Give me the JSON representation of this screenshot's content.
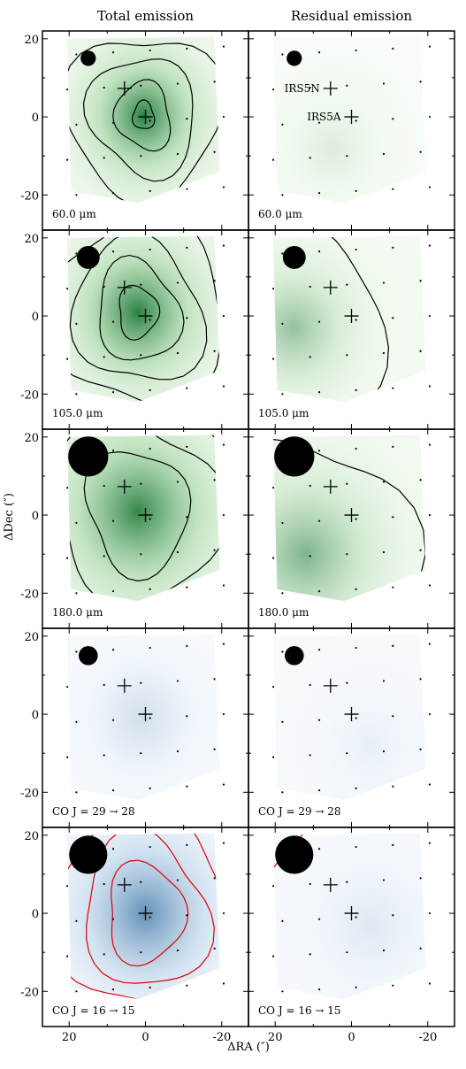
{
  "columns": [
    "Total emission",
    "Residual emission"
  ],
  "axes": {
    "ylabel": "ΔDec (″)",
    "xlabel": "ΔRA (″)",
    "xticks": [
      20,
      0,
      -20
    ],
    "yticks": [
      20,
      0,
      -20
    ],
    "xlim": [
      27,
      -27
    ],
    "ylim": [
      -29,
      22
    ]
  },
  "sources": [
    {
      "name": "IRS5N",
      "ra": 5.5,
      "dec": 7.3
    },
    {
      "name": "IRS5A",
      "ra": 0,
      "dec": 0
    }
  ],
  "chart_data": [
    {
      "type": "heatmap",
      "row": 0,
      "col": 0,
      "label": "60.0 μm",
      "colormap": "green",
      "beam_diameter_arcsec": 4,
      "peak": [
        0.5,
        0.3
      ],
      "peak_intensity": 0.95,
      "contour_levels": [
        0.22,
        0.45,
        0.7,
        0.88
      ],
      "contour_color": "#000000"
    },
    {
      "type": "heatmap",
      "row": 0,
      "col": 1,
      "label": "60.0 μm",
      "colormap": "green",
      "beam_diameter_arcsec": 4,
      "peak": [
        5,
        -8
      ],
      "peak_intensity": 0.12,
      "contour_levels": [],
      "contour_color": "#000000"
    },
    {
      "type": "heatmap",
      "row": 1,
      "col": 0,
      "label": "105.0 μm",
      "colormap": "green",
      "beam_diameter_arcsec": 6,
      "peak": [
        2,
        1
      ],
      "peak_intensity": 0.95,
      "contour_levels": [
        0.2,
        0.4,
        0.6,
        0.8
      ],
      "contour_color": "#000000"
    },
    {
      "type": "heatmap",
      "row": 1,
      "col": 1,
      "label": "105.0 μm",
      "colormap": "green",
      "beam_diameter_arcsec": 6,
      "peak": [
        15,
        -3
      ],
      "peak_intensity": 0.45,
      "contour_levels": [
        0.18
      ],
      "contour_color": "#000000"
    },
    {
      "type": "heatmap",
      "row": 2,
      "col": 0,
      "label": "180.0 μm",
      "colormap": "green",
      "beam_diameter_arcsec": 10.5,
      "peak": [
        2,
        1
      ],
      "peak_intensity": 0.9,
      "contour_levels": [
        0.15,
        0.38,
        0.6
      ],
      "contour_color": "#000000"
    },
    {
      "type": "heatmap",
      "row": 2,
      "col": 1,
      "label": "180.0 μm",
      "colormap": "green",
      "beam_diameter_arcsec": 10.5,
      "peak": [
        12,
        -10
      ],
      "peak_intensity": 0.55,
      "contour_levels": [
        0.22
      ],
      "contour_color": "#000000"
    },
    {
      "type": "heatmap",
      "row": 3,
      "col": 0,
      "label": "CO J = 29 → 28",
      "colormap": "blue",
      "beam_diameter_arcsec": 5,
      "peak": [
        1,
        -1
      ],
      "peak_intensity": 0.2,
      "contour_levels": [],
      "contour_color": "#dd0000"
    },
    {
      "type": "heatmap",
      "row": 3,
      "col": 1,
      "label": "CO J = 29 → 28",
      "colormap": "blue",
      "beam_diameter_arcsec": 5,
      "peak": [
        -5,
        -8
      ],
      "peak_intensity": 0.08,
      "contour_levels": [],
      "contour_color": "#dd0000"
    },
    {
      "type": "heatmap",
      "row": 4,
      "col": 0,
      "label": "CO J = 16 → 15",
      "colormap": "blue",
      "beam_diameter_arcsec": 10,
      "peak": [
        0,
        0
      ],
      "peak_intensity": 0.75,
      "contour_levels": [
        0.12,
        0.3,
        0.5,
        0.68
      ],
      "contour_color": "#dd0000"
    },
    {
      "type": "heatmap",
      "row": 4,
      "col": 1,
      "label": "CO J = 16 → 15",
      "colormap": "blue",
      "beam_diameter_arcsec": 10,
      "peak": [
        -5,
        -3
      ],
      "peak_intensity": 0.12,
      "contour_levels": [
        0.09
      ],
      "contour_color": "#dd0000"
    }
  ],
  "colors": {
    "green": "#1e7a3a",
    "blue": "#2f6da0",
    "contour_red": "#dd0000",
    "frame": "#000000"
  }
}
